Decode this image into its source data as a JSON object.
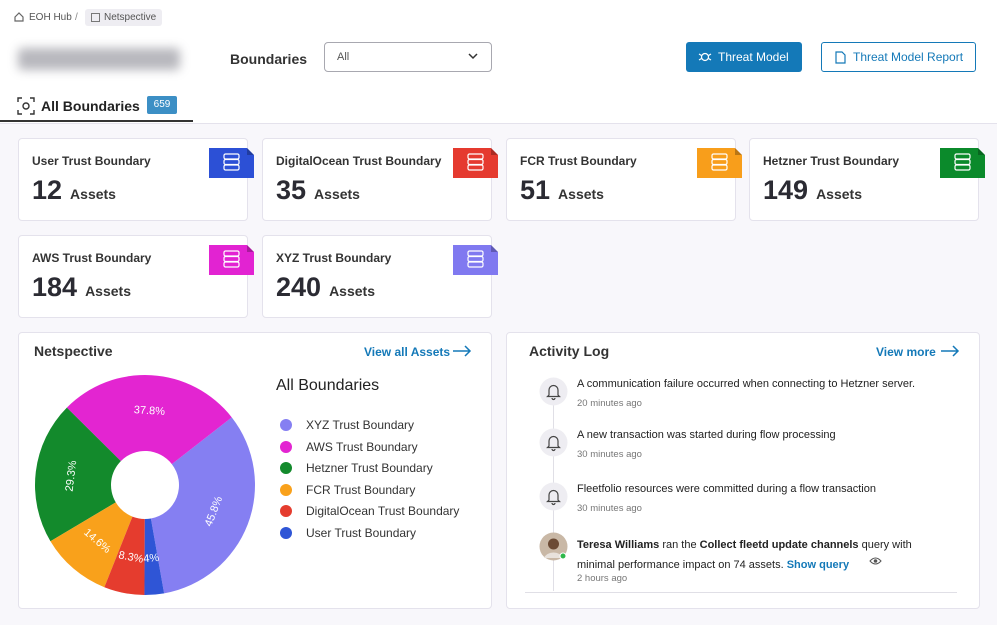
{
  "breadcrumb": [
    "EOH Hub",
    "Netspective"
  ],
  "filter": {
    "label": "Boundaries",
    "value": "All"
  },
  "buttons": [
    "Threat Model",
    "Threat Model Report"
  ],
  "tab": {
    "label": "All Boundaries",
    "count": 659
  },
  "cards": [
    {
      "name": "User Trust Boundary",
      "count": 12,
      "unit": "Assets",
      "color": "#2c50d6"
    },
    {
      "name": "DigitalOcean Trust Boundary",
      "count": 35,
      "unit": "Assets",
      "color": "#e53a2f"
    },
    {
      "name": "FCR Trust Boundary",
      "count": 51,
      "unit": "Assets",
      "color": "#f89e1b"
    },
    {
      "name": "Hetzner Trust Boundary",
      "count": 149,
      "unit": "Assets",
      "color": "#0b8a2b"
    },
    {
      "name": "AWS Trust Boundary",
      "count": 184,
      "unit": "Assets",
      "color": "#e223d2"
    },
    {
      "name": "XYZ Trust Boundary",
      "count": 240,
      "unit": "Assets",
      "color": "#8079f0"
    }
  ],
  "chart_panel": {
    "title": "Netspective",
    "link": "View all Assets"
  },
  "chart_data": {
    "type": "pie",
    "title": "All Boundaries",
    "categories": [
      "XYZ Trust Boundary",
      "AWS Trust Boundary",
      "Hetzner Trust Boundary",
      "FCR Trust Boundary",
      "DigitalOcean Trust Boundary",
      "User Trust Boundary"
    ],
    "values": [
      45.8,
      37.8,
      29.3,
      14.6,
      8.3,
      4
    ],
    "value_labels": [
      "45.8%",
      "37.8%",
      "29.3%",
      "14.6%",
      "8.3%",
      "4%"
    ],
    "colors": [
      "#857ff2",
      "#e325d1",
      "#138a2c",
      "#f9a11b",
      "#e53c2e",
      "#2f55d6"
    ]
  },
  "activity": {
    "title": "Activity Log",
    "link": "View more",
    "items": [
      {
        "text": "A communication failure occurred when connecting to Hetzner server.",
        "time": "20 minutes ago"
      },
      {
        "text": "A new transaction was started during flow processing",
        "time": "30 minutes ago"
      },
      {
        "text": "Fleetfolio resources were committed during a flow transaction",
        "time": "30 minutes ago"
      }
    ],
    "user_item": {
      "actor": "Teresa Williams",
      "verb": "ran the",
      "query": "Collect fleetd update channels",
      "rest": "query with minimal performance impact on 74 assets.",
      "link": "Show query",
      "time": "2 hours ago"
    }
  }
}
